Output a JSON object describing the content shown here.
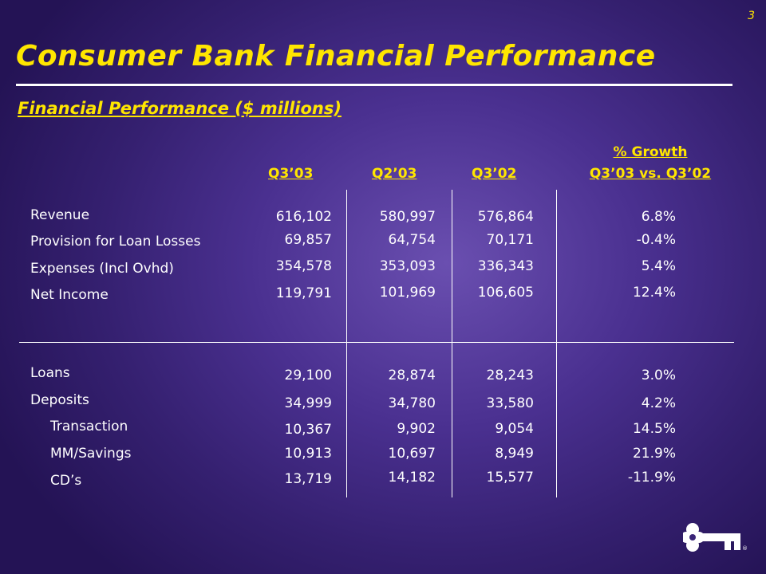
{
  "page_number": "3",
  "title": "Consumer Bank Financial Performance",
  "subtitle": "Financial Performance ($ millions)",
  "columns": {
    "q3_03": "Q3’03",
    "q2_03": "Q2’03",
    "q3_02": "Q3’02",
    "growth_line1": "% Growth",
    "growth_line2": "Q3’03 vs. Q3’02"
  },
  "income_rows": [
    {
      "label": "Revenue",
      "q3_03": "616,102",
      "q2_03": "580,997",
      "q3_02": "576,864",
      "growth": "6.8%"
    },
    {
      "label": "Provision for Loan Losses",
      "q3_03": "69,857",
      "q2_03": "64,754",
      "q3_02": "70,171",
      "growth": "-0.4%"
    },
    {
      "label": "Expenses (Incl Ovhd)",
      "q3_03": "354,578",
      "q2_03": "353,093",
      "q3_02": "336,343",
      "growth": "5.4%"
    },
    {
      "label": "Net Income",
      "q3_03": "119,791",
      "q2_03": "101,969",
      "q3_02": "106,605",
      "growth": "12.4%"
    }
  ],
  "balance_rows": [
    {
      "label": "Loans",
      "q3_03": "29,100",
      "q2_03": "28,874",
      "q3_02": "28,243",
      "growth": "3.0%"
    },
    {
      "label": "Deposits",
      "q3_03": "34,999",
      "q2_03": "34,780",
      "q3_02": "33,580",
      "growth": "4.2%"
    },
    {
      "label": "Transaction",
      "q3_03": "10,367",
      "q2_03": "9,902",
      "q3_02": "9,054",
      "growth": "14.5%"
    },
    {
      "label": "MM/Savings",
      "q3_03": "10,913",
      "q2_03": "10,697",
      "q3_02": "8,949",
      "growth": "21.9%"
    },
    {
      "label": "CD’s",
      "q3_03": "13,719",
      "q2_03": "14,182",
      "q3_02": "15,577",
      "growth": "-11.9%"
    }
  ],
  "colors": {
    "accent": "#ffe600",
    "text": "#ffffff",
    "background": "#4a3090"
  },
  "logo_icon": "key-logo-icon"
}
